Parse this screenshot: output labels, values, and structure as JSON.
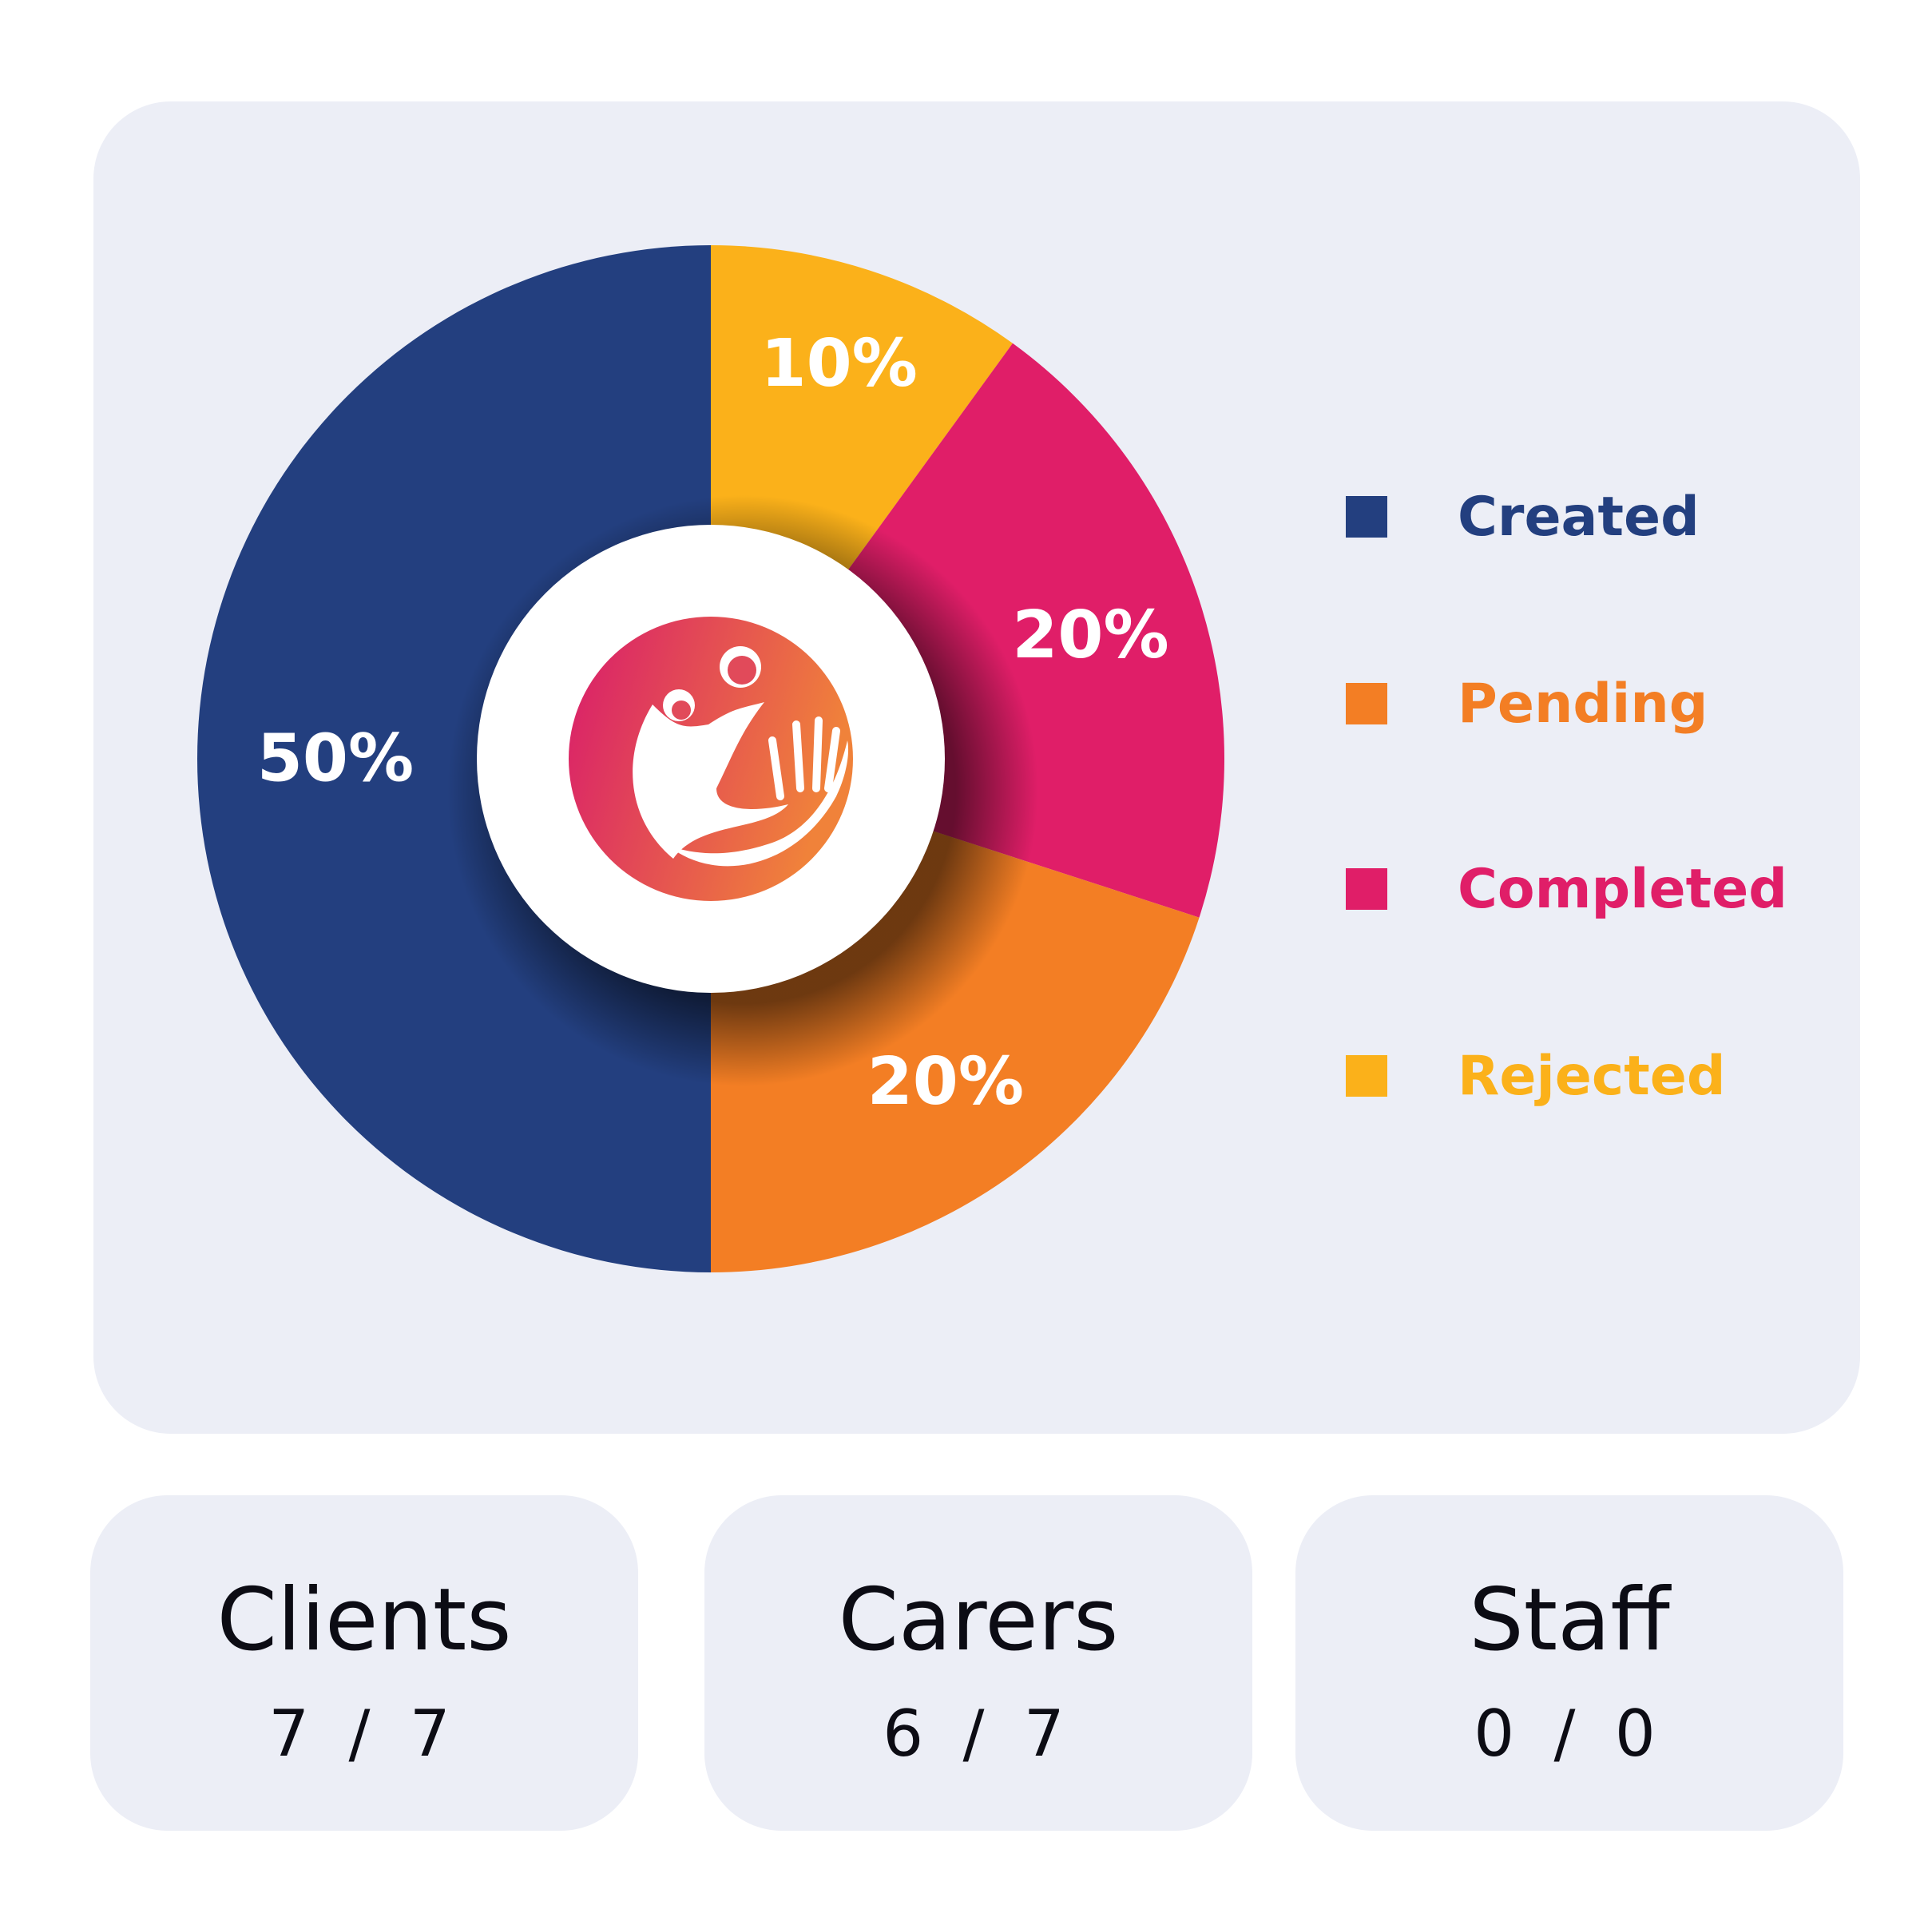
{
  "chart_data": {
    "type": "pie",
    "variant": "donut",
    "slices": [
      {
        "label": "Rejected",
        "value": 10,
        "display": "10%",
        "color": "#fbb11a"
      },
      {
        "label": "Completed",
        "value": 20,
        "display": "20%",
        "color": "#e01e68"
      },
      {
        "label": "Pending",
        "value": 20,
        "display": "20%",
        "color": "#f37e24"
      },
      {
        "label": "Created",
        "value": 50,
        "display": "50%",
        "color": "#233f7f"
      }
    ],
    "legend": [
      {
        "label": "Created",
        "color": "#233f7f"
      },
      {
        "label": "Pending",
        "color": "#f37e24"
      },
      {
        "label": "Completed",
        "color": "#e01e68"
      },
      {
        "label": "Rejected",
        "color": "#fbb11a"
      }
    ],
    "legend_position": "right",
    "center_icon": "care-hands-logo"
  },
  "stats": [
    {
      "label": "Clients",
      "value": "7 / 7"
    },
    {
      "label": "Carers",
      "value": "6 / 7"
    },
    {
      "label": "Staff",
      "value": "0 / 0"
    }
  ]
}
